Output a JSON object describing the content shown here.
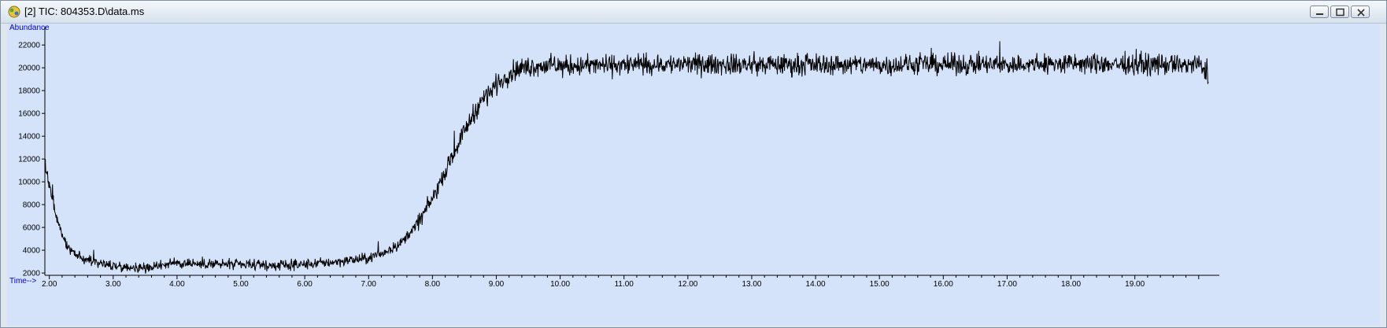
{
  "window": {
    "title": "[2] TIC: 804353.D\\data.ms",
    "icons": {
      "app": "chromatogram-app-icon",
      "minimize": "minimize-icon",
      "maximize": "maximize-icon",
      "close": "close-icon"
    }
  },
  "chart_data": {
    "type": "line",
    "title": "",
    "ylabel": "Abundance",
    "xlabel": "Time-->",
    "xlim": [
      1.93,
      20.2
    ],
    "ylim": [
      1800,
      23600
    ],
    "x_ticks": [
      "2.00",
      "3.00",
      "4.00",
      "5.00",
      "6.00",
      "7.00",
      "8.00",
      "9.00",
      "10.00",
      "11.00",
      "12.00",
      "13.00",
      "14.00",
      "15.00",
      "16.00",
      "17.00",
      "18.00",
      "19.00"
    ],
    "y_ticks": [
      "2000",
      "4000",
      "6000",
      "8000",
      "10000",
      "12000",
      "14000",
      "16000",
      "18000",
      "20000",
      "22000"
    ],
    "grid": false,
    "colors": {
      "trace": "#000000",
      "background": "#d4e3fa",
      "axis_label": "#0000cc"
    },
    "series": [
      {
        "x": [
          1.93,
          2.0,
          2.1,
          2.2,
          2.3,
          2.5,
          2.75,
          3.0,
          3.25,
          3.5,
          3.75,
          4.0,
          4.5,
          5.0,
          5.5,
          6.0,
          6.5,
          7.0,
          7.25,
          7.5,
          7.75,
          8.0,
          8.25,
          8.5,
          8.75,
          9.0,
          9.25,
          9.5,
          9.75,
          10.0,
          11.0,
          12.0,
          13.0,
          14.0,
          15.0,
          16.0,
          17.0,
          18.0,
          19.0,
          20.0,
          20.15
        ],
        "y": [
          11500,
          9600,
          7200,
          5200,
          4100,
          3300,
          2900,
          2650,
          2500,
          2450,
          2700,
          2900,
          2800,
          2700,
          2650,
          2750,
          3000,
          3300,
          3800,
          4600,
          6200,
          8500,
          11500,
          14500,
          17000,
          18500,
          19700,
          20100,
          20200,
          20150,
          20250,
          20300,
          20250,
          20300,
          20250,
          20300,
          20250,
          20350,
          20300,
          20250,
          19400
        ]
      }
    ]
  }
}
